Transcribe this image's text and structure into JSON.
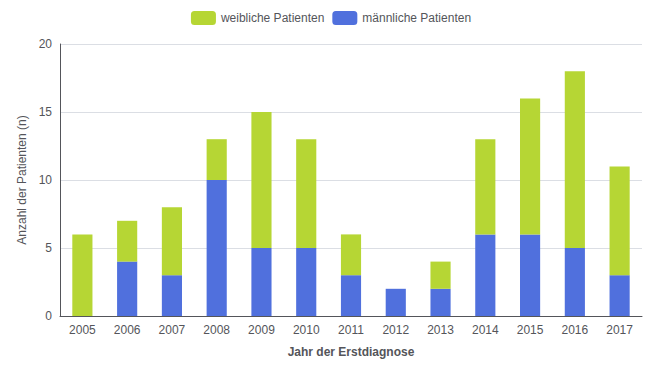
{
  "chart_data": {
    "type": "bar",
    "stacked": true,
    "categories": [
      "2005",
      "2006",
      "2007",
      "2008",
      "2009",
      "2010",
      "2011",
      "2012",
      "2013",
      "2014",
      "2015",
      "2016",
      "2017"
    ],
    "series": [
      {
        "name": "männliche Patienten",
        "values": [
          0,
          4,
          3,
          10,
          5,
          5,
          3,
          2,
          2,
          6,
          6,
          5,
          3
        ]
      },
      {
        "name": "weibliche Patienten",
        "values": [
          6,
          3,
          5,
          3,
          10,
          8,
          3,
          0,
          2,
          7,
          10,
          13,
          8
        ]
      }
    ],
    "xlabel": "Jahr der Erstdiagnose",
    "ylabel": "Anzahl der Patienten (n)",
    "ylim": [
      0,
      20
    ],
    "yticks": [
      0,
      5,
      10,
      15,
      20
    ],
    "grid": true,
    "legend": "top"
  }
}
